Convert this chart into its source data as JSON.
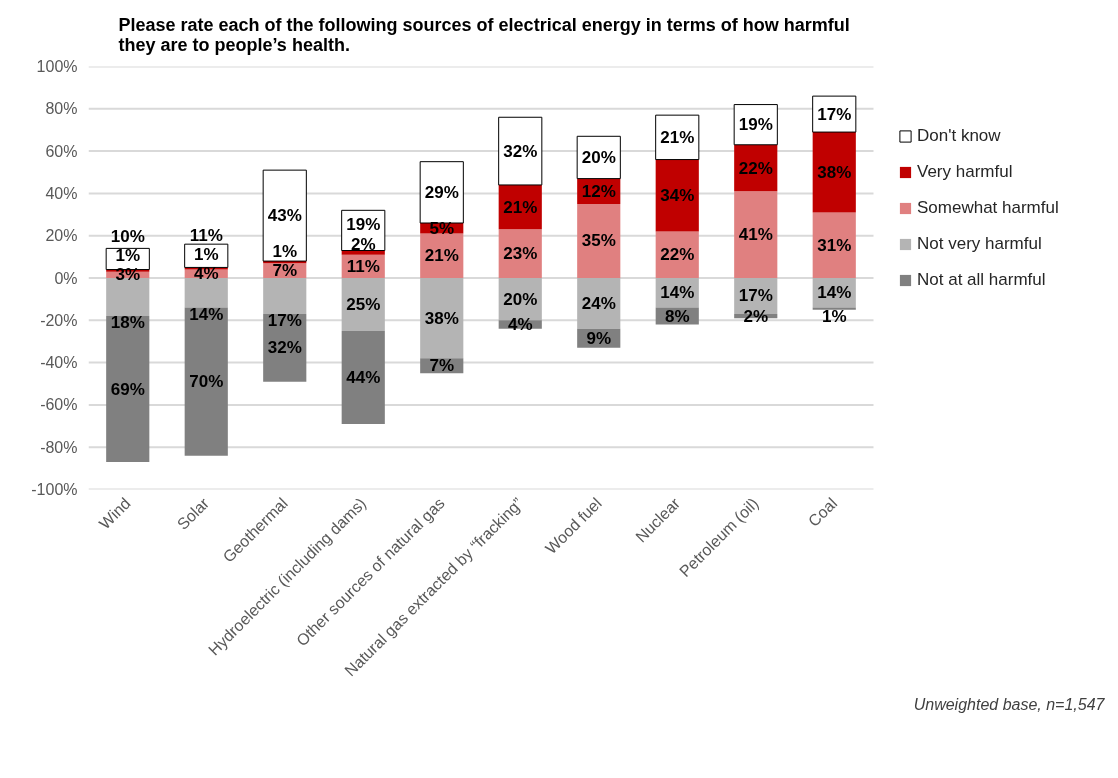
{
  "chart_data": {
    "type": "bar",
    "title": "Please rate each of the following sources of electrical energy in terms of how harmful they are to people’s health.",
    "categories": [
      "Wind",
      "Solar",
      "Geothermal",
      "Hydroelectric (including dams)",
      "Other sources of natural gas",
      "Natural gas extracted by “fracking”",
      "Wood fuel",
      "Nuclear",
      "Petroleum (oil)",
      "Coal"
    ],
    "series": [
      {
        "name": "Somewhat harmful",
        "color": "#e08080",
        "values": [
          3,
          4,
          7,
          11,
          21,
          23,
          35,
          22,
          41,
          31
        ],
        "base": [
          0,
          0,
          0,
          0,
          0,
          0,
          0,
          0,
          0,
          0
        ],
        "value_labels": [
          "3%",
          "4%",
          "7%",
          "11%",
          "21%",
          "23%",
          "35%",
          "22%",
          "41%",
          "31%"
        ]
      },
      {
        "name": "Very harmful",
        "color": "#c00000",
        "values": [
          1,
          1,
          1,
          2,
          5,
          21,
          12,
          34,
          22,
          38
        ],
        "base": [
          3,
          4,
          7,
          11,
          21,
          23,
          35,
          22,
          41,
          31
        ],
        "value_labels": [
          "1%",
          "1%",
          "1%",
          "2%",
          "5%",
          "21%",
          "12%",
          "34%",
          "22%",
          "38%"
        ]
      },
      {
        "name": "Don't know",
        "color": "#ffffff",
        "values": [
          10,
          11,
          43,
          19,
          29,
          32,
          20,
          21,
          19,
          17
        ],
        "base": [
          4,
          5,
          8,
          13,
          26,
          44,
          47,
          56,
          63,
          69
        ],
        "value_labels": [
          "10%",
          "11%",
          "43%",
          "19%",
          "29%",
          "32%",
          "20%",
          "21%",
          "19%",
          "17%"
        ]
      },
      {
        "name": "Not very harmful",
        "color": "#b4b4b4",
        "values": [
          18,
          14,
          17,
          25,
          38,
          20,
          24,
          14,
          17,
          14
        ],
        "base": [
          -18,
          -14,
          -17,
          -25,
          -38,
          -20,
          -24,
          -14,
          -17,
          -14
        ],
        "value_labels": [
          "18%",
          "14%",
          "17%",
          "25%",
          "38%",
          "20%",
          "24%",
          "14%",
          "17%",
          "14%"
        ]
      },
      {
        "name": "Not at all harmful",
        "color": "#808080",
        "values": [
          69,
          70,
          32,
          44,
          7,
          4,
          9,
          8,
          2,
          1
        ],
        "base": [
          -87,
          -84,
          -49,
          -69,
          -45,
          -24,
          -33,
          -22,
          -19,
          -15
        ],
        "value_labels": [
          "69%",
          "70%",
          "32%",
          "44%",
          "7%",
          "4%",
          "9%",
          "8%",
          "2%",
          "1%"
        ]
      }
    ],
    "ylim": [
      -100,
      100
    ],
    "yticks": [
      {
        "value": -100,
        "label": "-100%"
      },
      {
        "value": -80,
        "label": "-80%"
      },
      {
        "value": -60,
        "label": "-60%"
      },
      {
        "value": -40,
        "label": "-40%"
      },
      {
        "value": -20,
        "label": "-20%"
      },
      {
        "value": 0,
        "label": "0%"
      },
      {
        "value": 20,
        "label": "20%"
      },
      {
        "value": 40,
        "label": "40%"
      },
      {
        "value": 60,
        "label": "60%"
      },
      {
        "value": 80,
        "label": "80%"
      },
      {
        "value": 100,
        "label": "100%"
      }
    ],
    "grid": "y",
    "legend": "right",
    "annotations": [
      "Unweighted base, n=1,547"
    ]
  }
}
